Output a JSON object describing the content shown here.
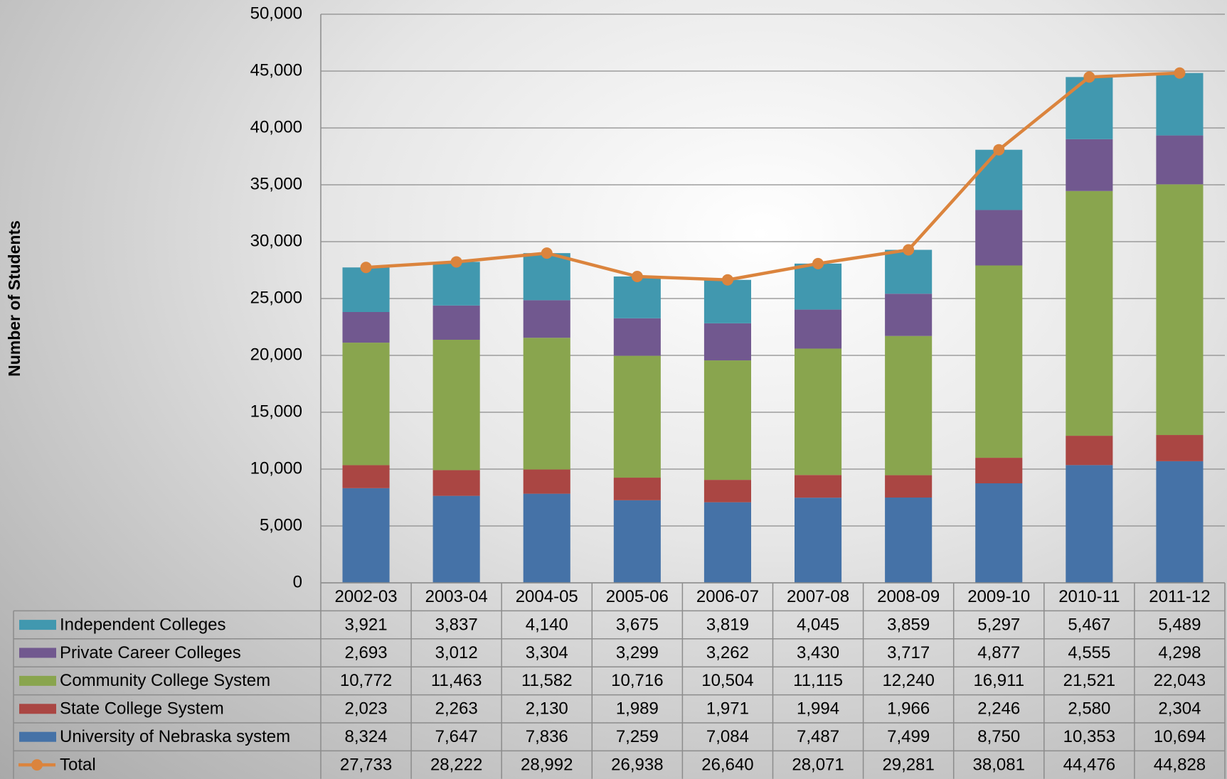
{
  "chart_data": {
    "type": "bar",
    "stacked": true,
    "y_label": "Number of Students",
    "categories": [
      "2002-03",
      "2003-04",
      "2004-05",
      "2005-06",
      "2006-07",
      "2007-08",
      "2008-09",
      "2009-10",
      "2010-11",
      "2011-12"
    ],
    "series": [
      {
        "name": "University of Nebraska system",
        "color": "#4572a7",
        "values": [
          8324,
          7647,
          7836,
          7259,
          7084,
          7487,
          7499,
          8750,
          10353,
          10694
        ],
        "value_labels": [
          "8,324",
          "7,647",
          "7,836",
          "7,259",
          "7,084",
          "7,487",
          "7,499",
          "8,750",
          "10,353",
          "10,694"
        ]
      },
      {
        "name": "State College System",
        "color": "#aa4643",
        "values": [
          2023,
          2263,
          2130,
          1989,
          1971,
          1994,
          1966,
          2246,
          2580,
          2304
        ],
        "value_labels": [
          "2,023",
          "2,263",
          "2,130",
          "1,989",
          "1,971",
          "1,994",
          "1,966",
          "2,246",
          "2,580",
          "2,304"
        ]
      },
      {
        "name": "Community College System",
        "color": "#89a54e",
        "values": [
          10772,
          11463,
          11582,
          10716,
          10504,
          11115,
          12240,
          16911,
          21521,
          22043
        ],
        "value_labels": [
          "10,772",
          "11,463",
          "11,582",
          "10,716",
          "10,504",
          "11,115",
          "12,240",
          "16,911",
          "21,521",
          "22,043"
        ]
      },
      {
        "name": "Private Career Colleges",
        "color": "#71588f",
        "values": [
          2693,
          3012,
          3304,
          3299,
          3262,
          3430,
          3717,
          4877,
          4555,
          4298
        ],
        "value_labels": [
          "2,693",
          "3,012",
          "3,304",
          "3,299",
          "3,262",
          "3,430",
          "3,717",
          "4,877",
          "4,555",
          "4,298"
        ]
      },
      {
        "name": "Independent Colleges",
        "color": "#4198af",
        "values": [
          3921,
          3837,
          4140,
          3675,
          3819,
          4045,
          3859,
          5297,
          5467,
          5489
        ],
        "value_labels": [
          "3,921",
          "3,837",
          "4,140",
          "3,675",
          "3,819",
          "4,045",
          "3,859",
          "5,297",
          "5,467",
          "5,489"
        ]
      },
      {
        "name": "Total",
        "type": "line",
        "color": "#db843d",
        "values": [
          27733,
          28222,
          28992,
          26938,
          26640,
          28071,
          29281,
          38081,
          44476,
          44828
        ],
        "value_labels": [
          "27,733",
          "28,222",
          "28,992",
          "26,938",
          "26,640",
          "28,071",
          "29,281",
          "38,081",
          "44,476",
          "44,828"
        ]
      }
    ],
    "ylim": [
      0,
      50000
    ],
    "yticks": [
      0,
      {
        "value": 5000,
        "label": "5,000"
      },
      {
        "value": 10000,
        "label": "10,000"
      },
      {
        "value": 15000,
        "label": "15,000"
      },
      {
        "value": 20000,
        "label": "20,000"
      },
      {
        "value": 25000,
        "label": "25,000"
      },
      {
        "value": 30000,
        "label": "30,000"
      },
      {
        "value": 35000,
        "label": "35,000"
      },
      {
        "value": 40000,
        "label": "40,000"
      },
      {
        "value": 45000,
        "label": "45,000"
      },
      {
        "value": 50000,
        "label": "50,000"
      }
    ],
    "grid": true
  }
}
